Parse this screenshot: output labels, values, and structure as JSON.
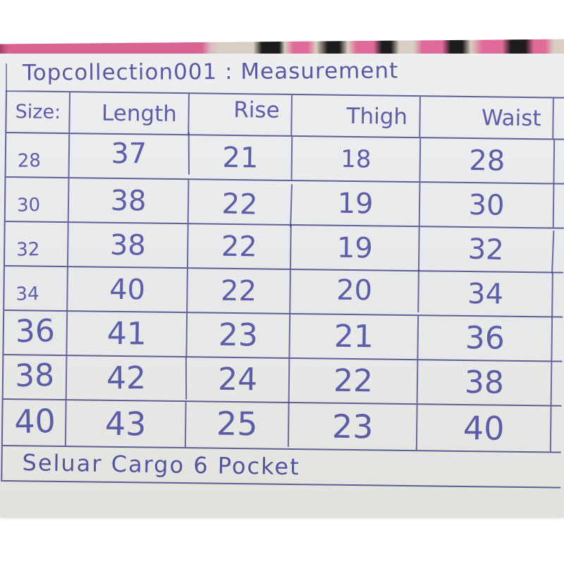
{
  "title": "Topcollection001 : Measurement",
  "table": {
    "headers": [
      "Size:",
      "Length",
      "Rise",
      "Thigh",
      "Waist"
    ],
    "rows": [
      {
        "size": "28",
        "length": "37",
        "rise": "21",
        "thigh": "18",
        "waist": "28"
      },
      {
        "size": "30",
        "length": "38",
        "rise": "22",
        "thigh": "19",
        "waist": "30"
      },
      {
        "size": "32",
        "length": "38",
        "rise": "22",
        "thigh": "19",
        "waist": "32"
      },
      {
        "size": "34",
        "length": "40",
        "rise": "22",
        "thigh": "20",
        "waist": "34"
      },
      {
        "size": "36",
        "length": "41",
        "rise": "23",
        "thigh": "21",
        "waist": "36"
      },
      {
        "size": "38",
        "length": "42",
        "rise": "24",
        "thigh": "22",
        "waist": "38"
      },
      {
        "size": "40",
        "length": "43",
        "rise": "25",
        "thigh": "23",
        "waist": "40"
      }
    ],
    "footer": "Seluar Cargo 6 Pocket"
  },
  "colors": {
    "ink": "#4a4c9e",
    "paper": "#e8e9eb",
    "fabric_pink": "#d96390",
    "fabric_dark_red": "#8e3050",
    "fabric_beige": "#d8cfc2",
    "fabric_black": "#1d1b1c"
  }
}
